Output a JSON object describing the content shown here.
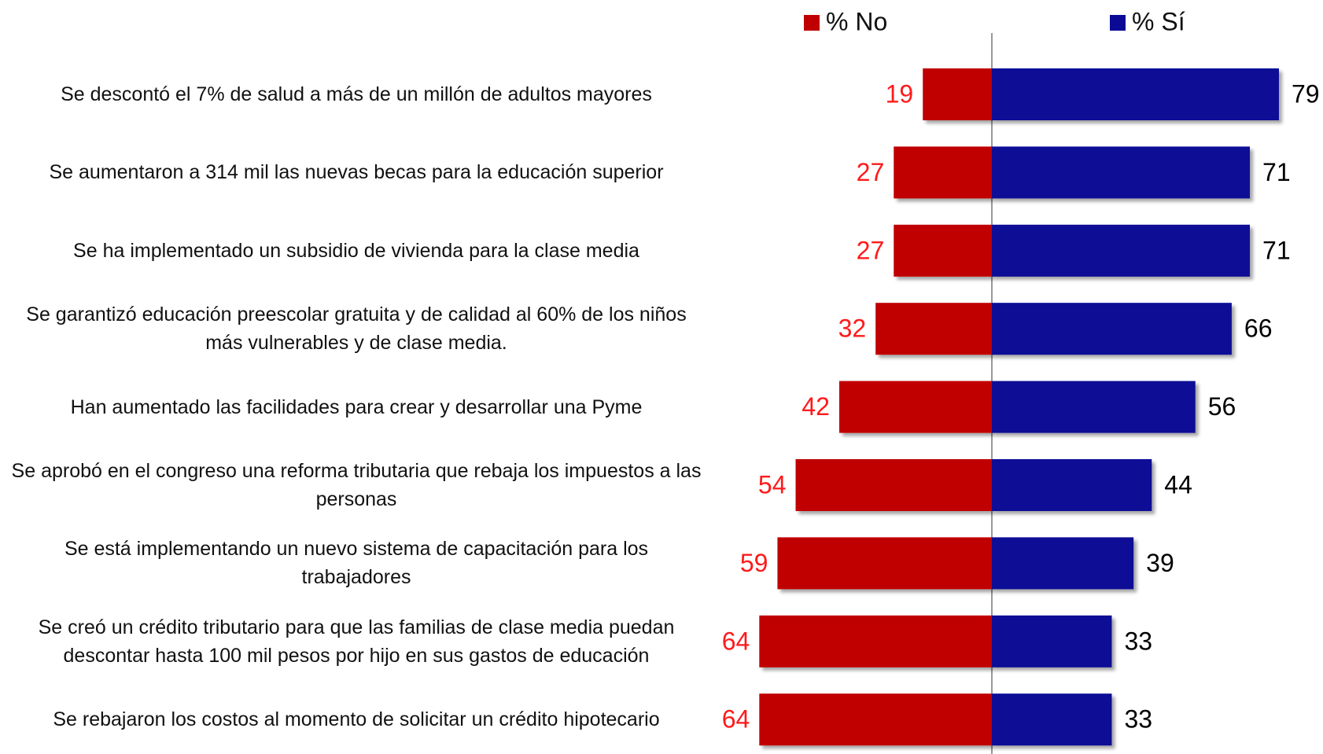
{
  "chart_data": {
    "type": "bar",
    "orientation": "horizontal",
    "layout": "diverging",
    "categories": [
      "Se descontó el 7% de salud a más de un millón de adultos mayores",
      "Se aumentaron a 314 mil las nuevas becas para la educación superior",
      "Se ha implementado un subsidio de vivienda para la clase media",
      "Se garantizó educación preescolar gratuita y de calidad al 60%  de los niños más vulnerables y de clase media.",
      "Han aumentado las facilidades para crear y desarrollar una Pyme",
      "Se aprobó en el congreso una reforma tributaria que rebaja los impuestos a las personas",
      "Se está implementando un nuevo sistema de capacitación para los trabajadores",
      "Se creó un crédito tributario para que las familias de clase media puedan descontar hasta 100 mil pesos por hijo en sus gastos de educación",
      "Se rebajaron los costos al momento de solicitar un crédito hipotecario"
    ],
    "series": [
      {
        "name": "% No",
        "color": "#c00000",
        "label_color": "#ff1a1a",
        "side": "left",
        "values": [
          19,
          27,
          27,
          32,
          42,
          54,
          59,
          64,
          64
        ]
      },
      {
        "name": "% Sí",
        "color": "#0a0a96",
        "label_color": "#000000",
        "side": "right",
        "values": [
          79,
          71,
          71,
          66,
          56,
          44,
          39,
          33,
          33
        ]
      }
    ],
    "legend": "top"
  }
}
